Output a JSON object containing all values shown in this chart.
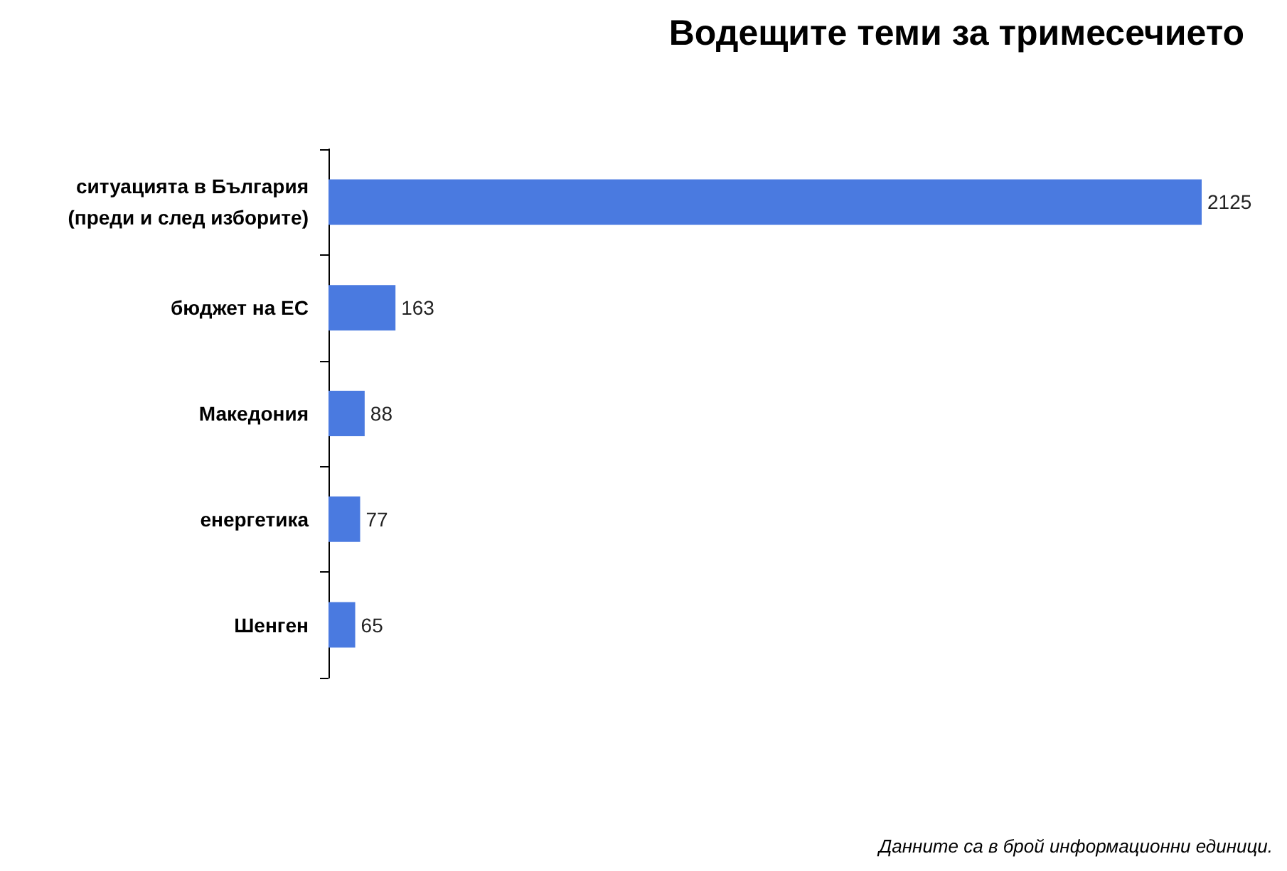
{
  "chart_data": {
    "type": "bar",
    "orientation": "horizontal",
    "title": "Водещите теми за тримесечието",
    "categories": [
      "ситуацията в България\n(преди и след изборите)",
      "бюджет на ЕС",
      "Македония",
      "енергетика",
      "Шенген"
    ],
    "values": [
      2125,
      163,
      88,
      77,
      65
    ],
    "color": "#4a7ae0",
    "data_labels": true,
    "annotations": [
      "Данните са в брой информационни единици."
    ]
  }
}
